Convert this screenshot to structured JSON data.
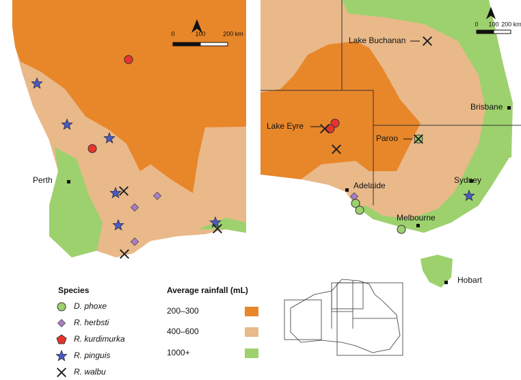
{
  "places": [
    "Perth",
    "Lake Buchanan",
    "Brisbane",
    "Lake Eyre",
    "Paroo",
    "Adelaide",
    "Sydney",
    "Melbourne",
    "Hobart"
  ],
  "scale_bars": [
    [
      "0",
      "100",
      "200 km"
    ],
    [
      "0",
      "100",
      "200 km"
    ]
  ],
  "legend": {
    "species_title": "Species",
    "species": [
      "D. phoxe",
      "R. herbsti",
      "R. kurdimurka",
      "R. pinguis",
      "R. walbu"
    ],
    "rainfall_title": "Average rainfall (mL)",
    "rainfall": [
      "200–300",
      "400–600",
      "1000+"
    ]
  }
}
